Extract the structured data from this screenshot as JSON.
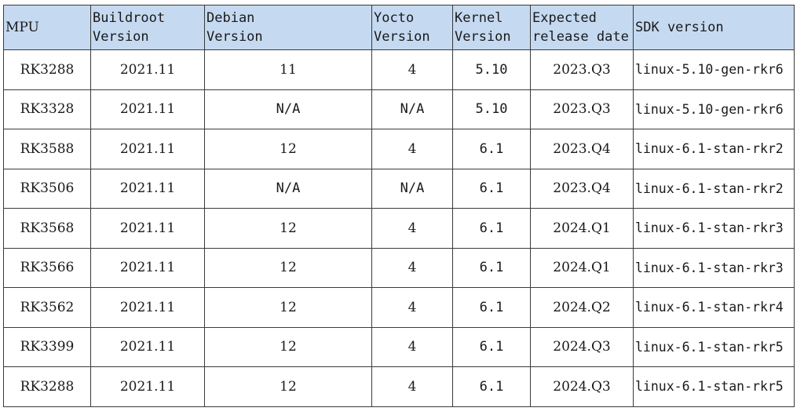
{
  "headers": [
    "MPU",
    "Buildroot\nVersion",
    "Debian\nVersion",
    "Yocto\nVersion",
    "Kernel\nVersion",
    "Expected\nrelease date",
    "SDK version"
  ],
  "rows": [
    [
      "RK3288",
      "2021.11",
      "11",
      "4",
      "5.10",
      "2023.Q3",
      "linux-5.10-gen-rkr6"
    ],
    [
      "RK3328",
      "2021.11",
      "N/A",
      "N/A",
      "5.10",
      "2023.Q3",
      "linux-5.10-gen-rkr6"
    ],
    [
      "RK3588",
      "2021.11",
      "12",
      "4",
      "6.1",
      "2023.Q4",
      "linux-6.1-stan-rkr2"
    ],
    [
      "RK3506",
      "2021.11",
      "N/A",
      "N/A",
      "6.1",
      "2023.Q4",
      "linux-6.1-stan-rkr2"
    ],
    [
      "RK3568",
      "2021.11",
      "12",
      "4",
      "6.1",
      "2024.Q1",
      "linux-6.1-stan-rkr3"
    ],
    [
      "RK3566",
      "2021.11",
      "12",
      "4",
      "6.1",
      "2024.Q1",
      "linux-6.1-stan-rkr3"
    ],
    [
      "RK3562",
      "2021.11",
      "12",
      "4",
      "6.1",
      "2024.Q2",
      "linux-6.1-stan-rkr4"
    ],
    [
      "RK3399",
      "2021.11",
      "12",
      "4",
      "6.1",
      "2024.Q3",
      "linux-6.1-stan-rkr5"
    ],
    [
      "RK3288",
      "2021.11",
      "12",
      "4",
      "6.1",
      "2024.Q3",
      "linux-6.1-stan-rkr5"
    ]
  ],
  "colors": {
    "header_background": "#c5d9f1",
    "border": "#3a3a3a"
  }
}
